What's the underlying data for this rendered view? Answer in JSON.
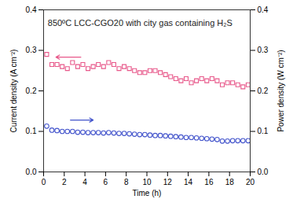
{
  "chart_data": {
    "type": "scatter",
    "annotation": "850ºC LCC-CGO20 with city gas containing H₂S",
    "x_label": "Time (h)",
    "x": [
      0.3,
      0.8,
      1.3,
      1.8,
      2.3,
      2.8,
      3.3,
      3.8,
      4.3,
      4.8,
      5.3,
      5.8,
      6.3,
      6.8,
      7.3,
      7.8,
      8.3,
      8.8,
      9.3,
      9.8,
      10.3,
      10.8,
      11.3,
      11.8,
      12.3,
      12.8,
      13.3,
      13.8,
      14.3,
      14.8,
      15.3,
      15.8,
      16.3,
      16.8,
      17.3,
      17.8,
      18.3,
      18.8,
      19.3,
      19.8
    ],
    "series": [
      {
        "name": "Current density (A cm⁻²)",
        "color": "#e8588a",
        "marker": "square",
        "axis": "y",
        "values": [
          0.29,
          0.265,
          0.265,
          0.26,
          0.255,
          0.27,
          0.26,
          0.265,
          0.255,
          0.26,
          0.265,
          0.26,
          0.27,
          0.265,
          0.255,
          0.26,
          0.255,
          0.25,
          0.245,
          0.245,
          0.25,
          0.25,
          0.245,
          0.24,
          0.235,
          0.23,
          0.225,
          0.23,
          0.22,
          0.225,
          0.23,
          0.225,
          0.23,
          0.225,
          0.215,
          0.22,
          0.22,
          0.215,
          0.21,
          0.215
        ]
      },
      {
        "name": "Power density (W cm⁻²)",
        "color": "#4455cc",
        "marker": "circle",
        "axis": "y2",
        "values": [
          0.113,
          0.103,
          0.102,
          0.1,
          0.1,
          0.1,
          0.098,
          0.098,
          0.097,
          0.097,
          0.097,
          0.096,
          0.097,
          0.096,
          0.095,
          0.095,
          0.094,
          0.093,
          0.092,
          0.092,
          0.091,
          0.09,
          0.09,
          0.089,
          0.088,
          0.087,
          0.086,
          0.085,
          0.085,
          0.084,
          0.083,
          0.082,
          0.081,
          0.08,
          0.076,
          0.076,
          0.077,
          0.077,
          0.077,
          0.077
        ]
      }
    ],
    "xlim": [
      0,
      20
    ],
    "xticks": [
      0,
      2,
      4,
      6,
      8,
      10,
      12,
      14,
      16,
      18,
      20
    ],
    "ylim": [
      0,
      0.4
    ],
    "yticks": [
      {
        "value": 0,
        "label": "0.0"
      },
      0.1,
      0.2,
      0.3,
      0.4
    ],
    "y2lim": [
      0,
      0.4
    ],
    "y2ticks": [
      {
        "value": 0,
        "label": "0.0"
      },
      0.1,
      0.2,
      0.3,
      0.4
    ]
  }
}
